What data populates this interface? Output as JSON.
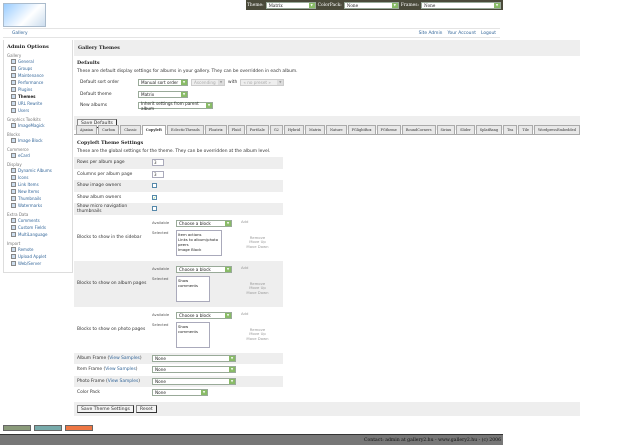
{
  "topbar": {
    "theme_label": "Theme:",
    "theme_value": "Matrix",
    "colorpack_label": "ColorPack:",
    "colorpack_value": "None",
    "frames_label": "Frames:",
    "frames_value": "None"
  },
  "logo_text": "Gallery",
  "breadcrumb": {
    "home": "Gallery",
    "links": [
      "Site Admin",
      "Your Account",
      "Logout"
    ]
  },
  "sidebar": {
    "title": "Admin Options",
    "groups": [
      {
        "name": "Gallery",
        "items": [
          "General",
          "Groups",
          "Maintenance",
          "Performance",
          "Plugins",
          "Themes",
          "URL Rewrite",
          "Users"
        ]
      },
      {
        "name": "Graphics Toolkits",
        "items": [
          "ImageMagick"
        ]
      },
      {
        "name": "Blocks",
        "items": [
          "Image Block"
        ]
      },
      {
        "name": "Commerce",
        "items": [
          "eCard"
        ]
      },
      {
        "name": "Display",
        "items": [
          "Dynamic Albums",
          "Icons",
          "Link Items",
          "New Items",
          "Thumbnails",
          "Watermarks"
        ]
      },
      {
        "name": "Extra Data",
        "items": [
          "Comments",
          "Custom Fields",
          "MultiLanguage"
        ]
      },
      {
        "name": "Import",
        "items": [
          "Remote",
          "Upload Applet",
          "Web/Server"
        ]
      }
    ],
    "current": "Themes"
  },
  "main": {
    "title": "Gallery Themes",
    "defaults": {
      "heading": "Defaults",
      "description": "These are default display settings for albums in your gallery. They can be overridden in each album.",
      "sort_label": "Default sort order",
      "sort_value": "Manual sort order",
      "direction_value": "Ascending",
      "with_label": "with",
      "preset_value": "« no preset »",
      "theme_label": "Default theme",
      "theme_value": "Matrix",
      "new_label": "New albums",
      "new_value": "Inherit settings from parent album",
      "save": "Save Defaults"
    },
    "tabs": [
      "Ajaxian",
      "Carbon",
      "Classic",
      "Copyleft",
      "EclecticThreads",
      "Floatrix",
      "Fluid",
      "PortSale",
      "G2",
      "Hybrid",
      "Matrix",
      "Nature",
      "PGlightBox",
      "PGtheme",
      "RoundCorners",
      "Siriux",
      "Slider",
      "SplatBang",
      "Tea",
      "Tile",
      "WordpressEmbedded"
    ],
    "active_tab": "Copyleft",
    "theme": {
      "heading": "Copyleft Theme Settings",
      "description": "These are the global settings for the theme. They can be overridden at the album level.",
      "rows_label": "Rows per album page",
      "rows_value": "3",
      "cols_label": "Columns per album page",
      "cols_value": "3",
      "image_owners_label": "Show image owners",
      "image_owners": false,
      "album_owners_label": "Show album owners",
      "album_owners": true,
      "micro_label": "Show micro navigation thumbnails",
      "micro": false,
      "available_label": "Available",
      "selected_label": "Selected",
      "choose": "Choose a block",
      "add": "Add",
      "remove": "Remove",
      "up": "Move Up",
      "down": "Move Down",
      "sidebar_label": "Blocks to show in the sidebar",
      "sidebar_blocks": [
        "Item actions",
        "Links to album/photo peers",
        "Image Block"
      ],
      "albumpage_label": "Blocks to show on album pages",
      "albumpage_blocks": [
        "Show comments"
      ],
      "photopage_label": "Blocks to show on photo pages",
      "photopage_blocks": [
        "Show comments"
      ],
      "album_frame_label": "Album Frame",
      "item_frame_label": "Item Frame",
      "photo_frame_label": "Photo Frame",
      "view_samples": "View Samples",
      "none": "None",
      "colorpack_label": "Color Pack",
      "save": "Save Theme Settings",
      "reset": "Reset"
    }
  },
  "footer": "Contact: admin at gallery2.hu - www.gallery2.hu - (c) 2006",
  "colors": {
    "topbar": "#4a4a3a",
    "link": "#336699",
    "footer": "#777777"
  }
}
